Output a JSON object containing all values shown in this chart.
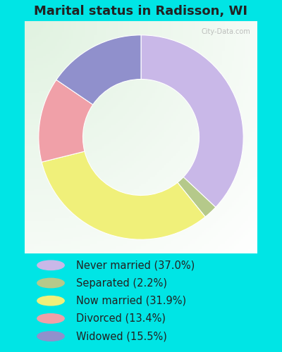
{
  "title": "Marital status in Radisson, WI",
  "slices": [
    37.0,
    2.2,
    31.9,
    13.4,
    15.5
  ],
  "labels": [
    "Never married (37.0%)",
    "Separated (2.2%)",
    "Now married (31.9%)",
    "Divorced (13.4%)",
    "Widowed (15.5%)"
  ],
  "colors": [
    "#c9b8e8",
    "#b5c98a",
    "#f0f07a",
    "#f0a0a8",
    "#9090cc"
  ],
  "legend_marker_colors": [
    "#c9b8e8",
    "#b5c98a",
    "#f0f07a",
    "#f0a0a8",
    "#9090cc"
  ],
  "background_outer": "#00e5e5",
  "startangle": 90,
  "title_fontsize": 13,
  "legend_fontsize": 10.5,
  "figsize": [
    4.0,
    5.0
  ],
  "dpi": 100,
  "watermark": "City-Data.com"
}
